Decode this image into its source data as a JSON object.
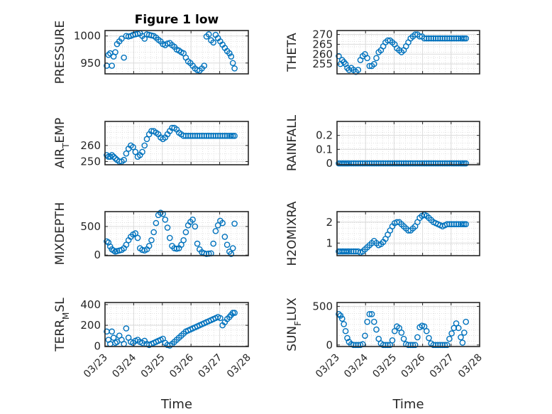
{
  "figure": {
    "title": "Figure 1 low",
    "xlabel": "Time",
    "xticklabels": [
      "03/23",
      "03/24",
      "03/25",
      "03/26",
      "03/27",
      "03/28"
    ]
  },
  "chart_data": [
    {
      "type": "scatter",
      "ylabel": "PRESSURE",
      "title": "Figure 1 low",
      "xlim": [
        "03/23",
        "03/28"
      ],
      "ylim": [
        930,
        1010
      ],
      "yticks": [
        950,
        1000
      ],
      "grid": true,
      "marker": "o",
      "color": "#0072BD",
      "x": [
        0.06,
        0.12,
        0.18,
        0.24,
        0.3,
        0.36,
        0.42,
        0.5,
        0.58,
        0.66,
        0.74,
        0.82,
        0.9,
        0.98,
        1.06,
        1.14,
        1.22,
        1.3,
        1.38,
        1.46,
        1.54,
        1.62,
        1.7,
        1.78,
        1.86,
        1.94,
        2.02,
        2.1,
        2.18,
        2.26,
        2.34,
        2.42,
        2.5,
        2.58,
        2.66,
        2.74,
        2.82,
        2.9,
        2.98,
        3.06,
        3.14,
        3.22,
        3.3,
        3.38,
        3.46,
        3.54,
        3.62,
        3.7,
        3.78,
        3.86,
        3.94,
        4.02,
        4.1,
        4.18,
        4.26,
        4.34,
        4.4,
        4.46,
        4.52
      ],
      "y": [
        945,
        965,
        968,
        945,
        962,
        970,
        985,
        990,
        995,
        960,
        1000,
        999,
        1000,
        1002,
        1003,
        1004,
        1005,
        1000,
        995,
        1003,
        1002,
        1001,
        1000,
        997,
        993,
        990,
        985,
        983,
        986,
        987,
        983,
        980,
        975,
        973,
        970,
        968,
        960,
        953,
        950,
        945,
        940,
        937,
        936,
        940,
        945,
        999,
        1003,
        992,
        988,
        1002,
        996,
        990,
        984,
        978,
        972,
        968,
        962,
        950,
        940
      ]
    },
    {
      "type": "scatter",
      "ylabel": "THETA",
      "xlim": [
        "03/23",
        "03/28"
      ],
      "ylim": [
        250,
        272
      ],
      "yticks": [
        255,
        260,
        265,
        270
      ],
      "grid": true,
      "marker": "o",
      "color": "#0072BD",
      "x": [
        0.06,
        0.12,
        0.18,
        0.24,
        0.3,
        0.36,
        0.42,
        0.5,
        0.58,
        0.66,
        0.74,
        0.82,
        0.9,
        0.98,
        1.06,
        1.14,
        1.22,
        1.3,
        1.38,
        1.46,
        1.54,
        1.62,
        1.7,
        1.78,
        1.86,
        1.94,
        2.02,
        2.1,
        2.18,
        2.26,
        2.34,
        2.42,
        2.5,
        2.58,
        2.66,
        2.74,
        2.82,
        2.9,
        2.98,
        3.06,
        3.14,
        3.22,
        3.3,
        3.38,
        3.46,
        3.54,
        3.62,
        3.7,
        3.78,
        3.86,
        3.94,
        4.02,
        4.1,
        4.18,
        4.26,
        4.34,
        4.4,
        4.46,
        4.52
      ],
      "y": [
        259,
        255,
        257,
        256,
        255,
        253,
        252,
        253,
        252,
        251,
        252,
        257,
        259,
        260,
        258,
        254,
        254,
        255,
        258,
        261,
        262,
        264,
        266,
        267,
        267,
        266,
        265,
        263,
        262,
        261,
        262,
        264,
        266,
        268,
        269,
        270,
        270,
        269,
        269,
        268,
        268,
        268,
        268,
        268,
        268,
        268,
        268,
        268,
        268,
        268,
        268,
        268,
        268,
        268,
        268,
        268,
        268,
        268,
        268
      ]
    },
    {
      "type": "scatter",
      "ylabel": "AIR_TEMP",
      "xlim": [
        "03/23",
        "03/28"
      ],
      "ylim": [
        248,
        275
      ],
      "yticks": [
        250,
        260
      ],
      "grid": true,
      "marker": "o",
      "color": "#0072BD",
      "x": [
        0.06,
        0.12,
        0.18,
        0.24,
        0.3,
        0.36,
        0.42,
        0.5,
        0.58,
        0.66,
        0.74,
        0.82,
        0.9,
        0.98,
        1.06,
        1.14,
        1.22,
        1.3,
        1.38,
        1.46,
        1.54,
        1.62,
        1.7,
        1.78,
        1.86,
        1.94,
        2.02,
        2.1,
        2.18,
        2.26,
        2.34,
        2.42,
        2.5,
        2.58,
        2.66,
        2.74,
        2.82,
        2.9,
        2.98,
        3.06,
        3.14,
        3.22,
        3.3,
        3.38,
        3.46,
        3.54,
        3.62,
        3.7,
        3.78,
        3.86,
        3.94,
        4.02,
        4.1,
        4.18,
        4.26,
        4.34,
        4.4,
        4.46,
        4.52
      ],
      "y": [
        254,
        253,
        253,
        254,
        253,
        252,
        251,
        250,
        250,
        251,
        255,
        258,
        260,
        259,
        256,
        253,
        254,
        256,
        260,
        264,
        267,
        269,
        269,
        268,
        267,
        265,
        264,
        265,
        267,
        269,
        271,
        271,
        270,
        268,
        267,
        266,
        266,
        266,
        266,
        266,
        266,
        266,
        266,
        266,
        266,
        266,
        266,
        266,
        266,
        266,
        266,
        266,
        266,
        266,
        266,
        266,
        266,
        266,
        266
      ]
    },
    {
      "type": "scatter",
      "ylabel": "RAINFALL",
      "xlim": [
        "03/23",
        "03/28"
      ],
      "ylim": [
        -0.01,
        0.3
      ],
      "yticks": [
        0,
        0.1,
        0.2
      ],
      "grid": true,
      "marker": "o",
      "color": "#0072BD",
      "x": [
        0.06,
        0.12,
        0.18,
        0.24,
        0.3,
        0.36,
        0.42,
        0.5,
        0.58,
        0.66,
        0.74,
        0.82,
        0.9,
        0.98,
        1.06,
        1.14,
        1.22,
        1.3,
        1.38,
        1.46,
        1.54,
        1.62,
        1.7,
        1.78,
        1.86,
        1.94,
        2.02,
        2.1,
        2.18,
        2.26,
        2.34,
        2.42,
        2.5,
        2.58,
        2.66,
        2.74,
        2.82,
        2.9,
        2.98,
        3.06,
        3.14,
        3.22,
        3.3,
        3.38,
        3.46,
        3.54,
        3.62,
        3.7,
        3.78,
        3.86,
        3.94,
        4.02,
        4.1,
        4.18,
        4.26,
        4.34,
        4.4,
        4.46,
        4.52
      ],
      "y": [
        0,
        0,
        0,
        0,
        0,
        0,
        0,
        0,
        0,
        0,
        0,
        0,
        0,
        0,
        0,
        0,
        0,
        0,
        0,
        0,
        0,
        0,
        0,
        0,
        0,
        0,
        0,
        0,
        0,
        0,
        0,
        0,
        0,
        0,
        0,
        0,
        0,
        0,
        0,
        0,
        0,
        0,
        0,
        0,
        0,
        0,
        0,
        0,
        0,
        0,
        0,
        0,
        0,
        0,
        0,
        0,
        0,
        0,
        0
      ]
    },
    {
      "type": "scatter",
      "ylabel": "MIXDEPTH",
      "xlim": [
        "03/23",
        "03/28"
      ],
      "ylim": [
        -10,
        760
      ],
      "yticks": [
        0,
        500
      ],
      "grid": true,
      "marker": "o",
      "color": "#0072BD",
      "x": [
        0.06,
        0.12,
        0.18,
        0.24,
        0.3,
        0.36,
        0.42,
        0.5,
        0.58,
        0.66,
        0.74,
        0.82,
        0.9,
        0.98,
        1.06,
        1.14,
        1.22,
        1.3,
        1.38,
        1.46,
        1.54,
        1.62,
        1.7,
        1.78,
        1.86,
        1.94,
        2.02,
        2.1,
        2.18,
        2.26,
        2.34,
        2.42,
        2.5,
        2.58,
        2.66,
        2.74,
        2.82,
        2.9,
        2.98,
        3.06,
        3.14,
        3.22,
        3.3,
        3.38,
        3.46,
        3.54,
        3.62,
        3.7,
        3.78,
        3.86,
        3.94,
        4.02,
        4.1,
        4.18,
        4.26,
        4.34,
        4.4,
        4.46,
        4.52
      ],
      "y": [
        240,
        220,
        150,
        100,
        80,
        60,
        70,
        80,
        90,
        120,
        180,
        260,
        320,
        360,
        380,
        300,
        120,
        90,
        80,
        100,
        160,
        260,
        400,
        560,
        700,
        740,
        720,
        620,
        480,
        300,
        160,
        120,
        110,
        120,
        180,
        260,
        400,
        520,
        580,
        620,
        500,
        200,
        100,
        50,
        30,
        20,
        25,
        30,
        200,
        420,
        520,
        600,
        560,
        320,
        180,
        60,
        20,
        120,
        550
      ]
    },
    {
      "type": "scatter",
      "ylabel": "H2OMIXRA",
      "xlim": [
        "03/23",
        "03/28"
      ],
      "ylim": [
        0.4,
        2.5
      ],
      "yticks": [
        1,
        2
      ],
      "grid": true,
      "marker": "o",
      "color": "#0072BD",
      "x": [
        0.06,
        0.12,
        0.18,
        0.24,
        0.3,
        0.36,
        0.42,
        0.5,
        0.58,
        0.66,
        0.74,
        0.82,
        0.9,
        0.98,
        1.06,
        1.14,
        1.22,
        1.3,
        1.38,
        1.46,
        1.54,
        1.62,
        1.7,
        1.78,
        1.86,
        1.94,
        2.02,
        2.1,
        2.18,
        2.26,
        2.34,
        2.42,
        2.5,
        2.58,
        2.66,
        2.74,
        2.82,
        2.9,
        2.98,
        3.06,
        3.14,
        3.22,
        3.3,
        3.38,
        3.46,
        3.54,
        3.62,
        3.7,
        3.78,
        3.86,
        3.94,
        4.02,
        4.1,
        4.18,
        4.26,
        4.34,
        4.4,
        4.46,
        4.52
      ],
      "y": [
        0.6,
        0.6,
        0.6,
        0.6,
        0.6,
        0.6,
        0.6,
        0.6,
        0.6,
        0.6,
        0.6,
        0.55,
        0.6,
        0.7,
        0.8,
        0.9,
        1.0,
        1.1,
        1.0,
        0.9,
        0.95,
        1.05,
        1.2,
        1.4,
        1.6,
        1.8,
        1.95,
        2.0,
        2.0,
        1.9,
        1.8,
        1.7,
        1.6,
        1.6,
        1.7,
        1.8,
        2.0,
        2.2,
        2.3,
        2.35,
        2.3,
        2.2,
        2.1,
        2.0,
        1.95,
        1.9,
        1.85,
        1.8,
        1.85,
        1.9,
        1.9,
        1.9,
        1.9,
        1.9,
        1.9,
        1.9,
        1.9,
        1.9,
        1.9
      ]
    },
    {
      "type": "scatter",
      "ylabel": "TERR_MSL",
      "xlim": [
        "03/23",
        "03/28"
      ],
      "ylim": [
        -5,
        420
      ],
      "yticks": [
        0,
        200,
        400
      ],
      "grid": true,
      "marker": "o",
      "color": "#0072BD",
      "x": [
        0.06,
        0.12,
        0.18,
        0.24,
        0.3,
        0.36,
        0.42,
        0.5,
        0.58,
        0.66,
        0.74,
        0.82,
        0.9,
        0.98,
        1.06,
        1.14,
        1.22,
        1.3,
        1.38,
        1.46,
        1.54,
        1.62,
        1.7,
        1.78,
        1.86,
        1.94,
        2.02,
        2.1,
        2.18,
        2.26,
        2.34,
        2.42,
        2.5,
        2.58,
        2.66,
        2.74,
        2.82,
        2.9,
        2.98,
        3.06,
        3.14,
        3.22,
        3.3,
        3.38,
        3.46,
        3.54,
        3.62,
        3.7,
        3.78,
        3.86,
        3.94,
        4.02,
        4.1,
        4.18,
        4.26,
        4.34,
        4.4,
        4.46,
        4.52
      ],
      "y": [
        140,
        60,
        20,
        140,
        80,
        30,
        40,
        100,
        60,
        20,
        170,
        80,
        40,
        30,
        50,
        60,
        40,
        30,
        50,
        20,
        10,
        20,
        30,
        40,
        50,
        60,
        70,
        30,
        10,
        5,
        20,
        40,
        60,
        80,
        100,
        120,
        140,
        150,
        160,
        170,
        180,
        190,
        200,
        210,
        220,
        230,
        240,
        250,
        260,
        270,
        280,
        270,
        200,
        230,
        260,
        280,
        300,
        320,
        320
      ]
    },
    {
      "type": "scatter",
      "ylabel": "SUN_FLUX",
      "xlim": [
        "03/23",
        "03/28"
      ],
      "ylim": [
        -20,
        550
      ],
      "yticks": [
        0,
        500
      ],
      "grid": true,
      "marker": "o",
      "color": "#0072BD",
      "x": [
        0.06,
        0.12,
        0.18,
        0.24,
        0.3,
        0.36,
        0.42,
        0.5,
        0.58,
        0.66,
        0.74,
        0.82,
        0.9,
        0.98,
        1.06,
        1.14,
        1.22,
        1.3,
        1.38,
        1.46,
        1.54,
        1.62,
        1.7,
        1.78,
        1.86,
        1.94,
        2.02,
        2.1,
        2.18,
        2.26,
        2.34,
        2.42,
        2.5,
        2.58,
        2.66,
        2.74,
        2.82,
        2.9,
        2.98,
        3.06,
        3.14,
        3.22,
        3.3,
        3.38,
        3.46,
        3.54,
        3.62,
        3.7,
        3.78,
        3.86,
        3.94,
        4.02,
        4.1,
        4.18,
        4.26,
        4.34,
        4.4,
        4.46,
        4.52
      ],
      "y": [
        400,
        380,
        340,
        270,
        180,
        90,
        40,
        10,
        0,
        0,
        0,
        0,
        10,
        120,
        300,
        400,
        400,
        300,
        200,
        80,
        20,
        0,
        0,
        0,
        0,
        60,
        180,
        240,
        220,
        160,
        80,
        10,
        0,
        0,
        0,
        0,
        100,
        230,
        250,
        240,
        180,
        90,
        20,
        0,
        0,
        0,
        0,
        0,
        0,
        0,
        80,
        150,
        220,
        280,
        220,
        100,
        30,
        160,
        300
      ]
    }
  ]
}
